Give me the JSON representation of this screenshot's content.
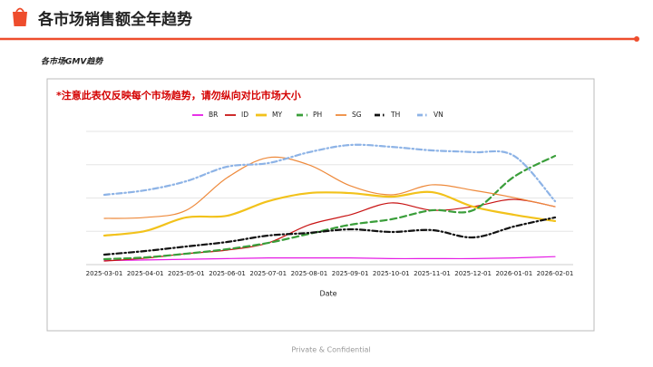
{
  "header": {
    "title": "各市场销售额全年趋势"
  },
  "chart_data": {
    "type": "line",
    "title": "各市场GMV趋势",
    "annotation": "*注意此表仅反映每个市场趋势，请勿纵向对比市场大小",
    "xlabel": "Date",
    "categories": [
      "2025-03-01",
      "2025-04-01",
      "2025-05-01",
      "2025-06-01",
      "2025-07-01",
      "2025-08-01",
      "2025-09-01",
      "2025-10-01",
      "2025-11-01",
      "2025-12-01",
      "2026-01-01",
      "2026-02-01"
    ],
    "ylim": [
      0,
      100
    ],
    "grid": true,
    "legend": "top",
    "series": [
      {
        "name": "BR",
        "color": "#e51ce5",
        "dash": "solid",
        "values": [
          3,
          3.5,
          4,
          4.5,
          5,
          5,
          5,
          4.5,
          4.5,
          4.5,
          5,
          6
        ]
      },
      {
        "name": "ID",
        "color": "#c81414",
        "dash": "solid",
        "values": [
          2.7,
          4.8,
          8.2,
          10.9,
          16.3,
          29.9,
          37.4,
          46.3,
          40.8,
          43.5,
          49,
          43.5
        ]
      },
      {
        "name": "MY",
        "color": "#f2c21b",
        "dash": "solid",
        "values": [
          21.8,
          25.2,
          35.4,
          36.7,
          47.6,
          53.7,
          53.7,
          51,
          54.4,
          43.5,
          37.4,
          32.7
        ]
      },
      {
        "name": "PH",
        "color": "#3a9e3a",
        "dash": "dashed",
        "values": [
          4.1,
          5.4,
          8.2,
          11.6,
          16.3,
          23.1,
          29.9,
          34,
          40.8,
          40.8,
          66,
          81.6
        ]
      },
      {
        "name": "SG",
        "color": "#ee8a3c",
        "dash": "solid",
        "values": [
          34.7,
          35.4,
          40.8,
          65.3,
          80.3,
          74.8,
          59.2,
          52.4,
          59.9,
          55.8,
          50.3,
          43.5
        ]
      },
      {
        "name": "TH",
        "color": "#111111",
        "dash": "dashdot",
        "values": [
          7.5,
          10.2,
          13.6,
          17,
          21.8,
          23.8,
          26.5,
          24.5,
          25.9,
          20.4,
          28.6,
          35.4
        ]
      },
      {
        "name": "VN",
        "color": "#8db3e6",
        "dash": "dashdot",
        "values": [
          52.4,
          55.8,
          62.6,
          73.5,
          76.2,
          84.4,
          89.8,
          88.4,
          85.7,
          84.4,
          81.6,
          47.6
        ]
      }
    ]
  },
  "footer": "Private & Confidential"
}
